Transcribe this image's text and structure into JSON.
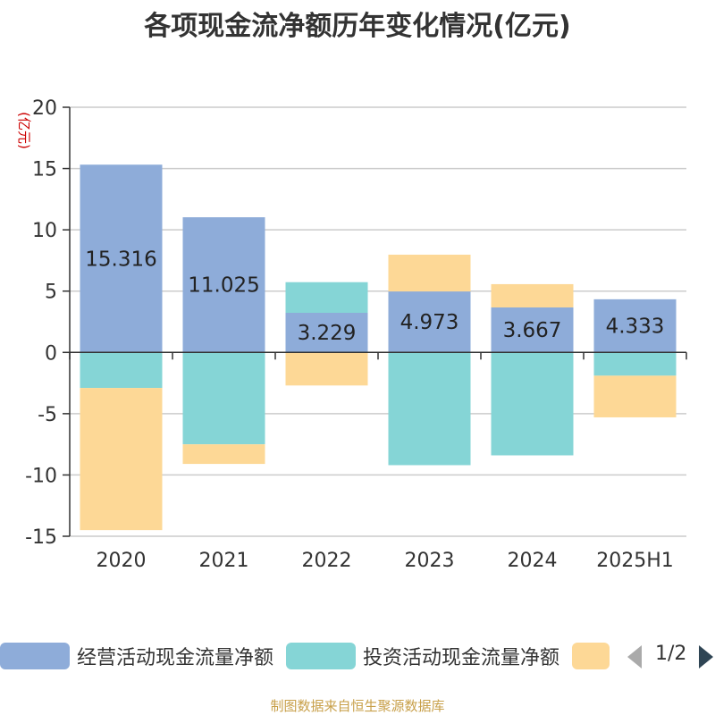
{
  "title": "各项现金流净额历年变化情况(亿元)",
  "unit_label": "(亿元)",
  "source": "制图数据来自恒生聚源数据库",
  "legend_items": [
    {
      "label": "经营活动现金流量净额",
      "color": "#8eacd9"
    },
    {
      "label": "投资活动现金流量净额",
      "color": "#85d5d6"
    },
    {
      "label": "",
      "color": "#fdd896"
    }
  ],
  "legend_page": "1/2",
  "colors": {
    "operating": "#8eacd9",
    "investing": "#85d5d6",
    "financing": "#fdd896",
    "unit": "#cc0000"
  },
  "chart_data": {
    "type": "bar",
    "stacked": true,
    "categories": [
      "2020",
      "2021",
      "2022",
      "2023",
      "2024",
      "2025H1"
    ],
    "ylim": [
      -15,
      20
    ],
    "yticks": [
      20,
      15,
      10,
      5,
      0,
      -5,
      -10,
      -15
    ],
    "grid": true,
    "legend_position": "bottom",
    "series": [
      {
        "name": "经营活动现金流量净额",
        "values": [
          15.316,
          11.025,
          3.229,
          4.973,
          3.667,
          4.333
        ],
        "data_labels": true
      },
      {
        "name": "投资活动现金流量净额",
        "values": [
          -2.9,
          -7.5,
          2.5,
          -9.2,
          -8.4,
          -1.9
        ]
      },
      {
        "name": "",
        "values": [
          -11.6,
          -1.6,
          -2.7,
          3.0,
          1.9,
          -3.4
        ]
      }
    ]
  }
}
